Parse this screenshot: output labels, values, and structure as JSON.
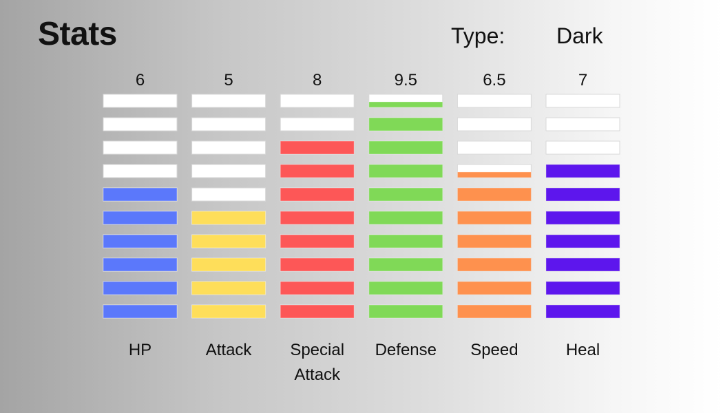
{
  "header": {
    "title": "Stats",
    "type_label": "Type:",
    "type_value": "Dark"
  },
  "chart_data": {
    "type": "bar",
    "orientation": "vertical-segmented",
    "segments_per_bar": 10,
    "categories": [
      "HP",
      "Attack",
      "Special Attack",
      "Defense",
      "Speed",
      "Heal"
    ],
    "category_lines": [
      [
        "HP"
      ],
      [
        "Attack"
      ],
      [
        "Special",
        "Attack"
      ],
      [
        "Defense"
      ],
      [
        "Speed"
      ],
      [
        "Heal"
      ]
    ],
    "value_labels": [
      "6",
      "5",
      "8",
      "9.5",
      "6.5",
      "7"
    ],
    "values": [
      6,
      5,
      8,
      9.5,
      6.5,
      7
    ],
    "ylim": [
      0,
      10
    ],
    "colors": [
      "#5b78fb",
      "#fede5a",
      "#fd5757",
      "#80d957",
      "#fe914e",
      "#5d16ed"
    ],
    "empty_color": "#ffffff"
  }
}
